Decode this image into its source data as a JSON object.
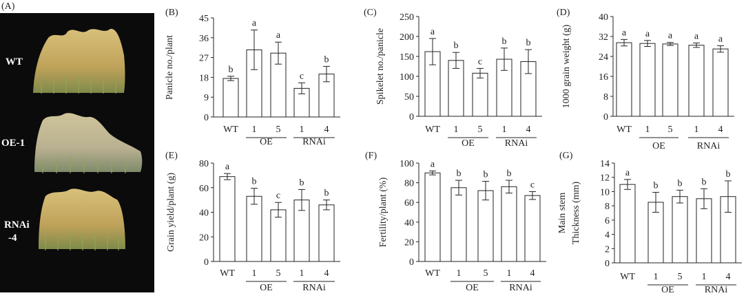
{
  "photo": {
    "label": "(A)",
    "plants": [
      {
        "label": "WT"
      },
      {
        "label": "OE-1"
      },
      {
        "label": "RNAi"
      },
      {
        "label": "-4"
      }
    ]
  },
  "chart_data": [
    {
      "type": "bar",
      "panel_label": "(B)",
      "ylabel": "Panicle no./plant",
      "ylim": [
        0,
        45
      ],
      "yticks": [
        0,
        9,
        18,
        27,
        36,
        45
      ],
      "categories": [
        "WT",
        "1",
        "5",
        "1",
        "4"
      ],
      "groups": [
        "OE",
        "RNAi"
      ],
      "values": [
        17.5,
        30.5,
        29,
        13,
        19.5
      ],
      "errors": [
        1,
        9,
        5,
        2.5,
        3.5
      ],
      "letters": [
        "b",
        "a",
        "a",
        "c",
        "b"
      ]
    },
    {
      "type": "bar",
      "panel_label": "(C)",
      "ylabel": "Spikelet no./panicle",
      "ylim": [
        0,
        250
      ],
      "yticks": [
        0,
        50,
        100,
        150,
        200,
        250
      ],
      "categories": [
        "WT",
        "1",
        "5",
        "1",
        "4"
      ],
      "groups": [
        "OE",
        "RNAi"
      ],
      "values": [
        162,
        140,
        108,
        143,
        137
      ],
      "errors": [
        33,
        20,
        12,
        28,
        30
      ],
      "letters": [
        "a",
        "b",
        "c",
        "b",
        "b"
      ]
    },
    {
      "type": "bar",
      "panel_label": "(D)",
      "ylabel": "1000 grain weight (g)",
      "ylim": [
        0,
        40
      ],
      "yticks": [
        0,
        8,
        16,
        24,
        32,
        40
      ],
      "categories": [
        "WT",
        "1",
        "5",
        "1",
        "4"
      ],
      "groups": [
        "OE",
        "RNAi"
      ],
      "values": [
        29.5,
        29.2,
        29,
        28.5,
        27
      ],
      "errors": [
        1.3,
        1.2,
        0.6,
        0.9,
        1.3
      ],
      "letters": [
        "a",
        "a",
        "a",
        "a",
        "a"
      ]
    },
    {
      "type": "bar",
      "panel_label": "(E)",
      "ylabel": "Grain yield/plant (g)",
      "ylim": [
        0,
        80
      ],
      "yticks": [
        0,
        20,
        40,
        60,
        80
      ],
      "categories": [
        "WT",
        "1",
        "5",
        "1",
        "4"
      ],
      "groups": [
        "OE",
        "RNAi"
      ],
      "values": [
        69,
        53,
        42,
        50,
        46
      ],
      "errors": [
        2.5,
        6.5,
        6,
        8.5,
        4
      ],
      "letters": [
        "a",
        "b",
        "c",
        "b",
        "b"
      ]
    },
    {
      "type": "bar",
      "panel_label": "(F)",
      "ylabel": "Fertility/plant (%)",
      "ylim": [
        0,
        100
      ],
      "yticks": [
        0,
        20,
        40,
        60,
        80,
        100
      ],
      "categories": [
        "WT",
        "1",
        "5",
        "1",
        "4"
      ],
      "groups": [
        "OE",
        "RNAi"
      ],
      "values": [
        90,
        75,
        72,
        76,
        67
      ],
      "errors": [
        2,
        7.5,
        9.5,
        6.5,
        4
      ],
      "letters": [
        "a",
        "b",
        "b",
        "b",
        "c"
      ]
    },
    {
      "type": "bar",
      "panel_label": "(G)",
      "ylabel": [
        "Main stem",
        "Thickness (mm)"
      ],
      "ylim": [
        0,
        14
      ],
      "yticks": [
        0,
        2,
        4,
        6,
        8,
        10,
        12,
        14
      ],
      "categories": [
        "WT",
        "1",
        "5",
        "1",
        "4"
      ],
      "groups": [
        "OE",
        "RNAi"
      ],
      "values": [
        11,
        8.5,
        9.3,
        9.0,
        9.3
      ],
      "errors": [
        0.7,
        1.4,
        0.9,
        1.4,
        2.2
      ],
      "letters": [
        "a",
        "b",
        "b",
        "b",
        "b"
      ]
    }
  ]
}
